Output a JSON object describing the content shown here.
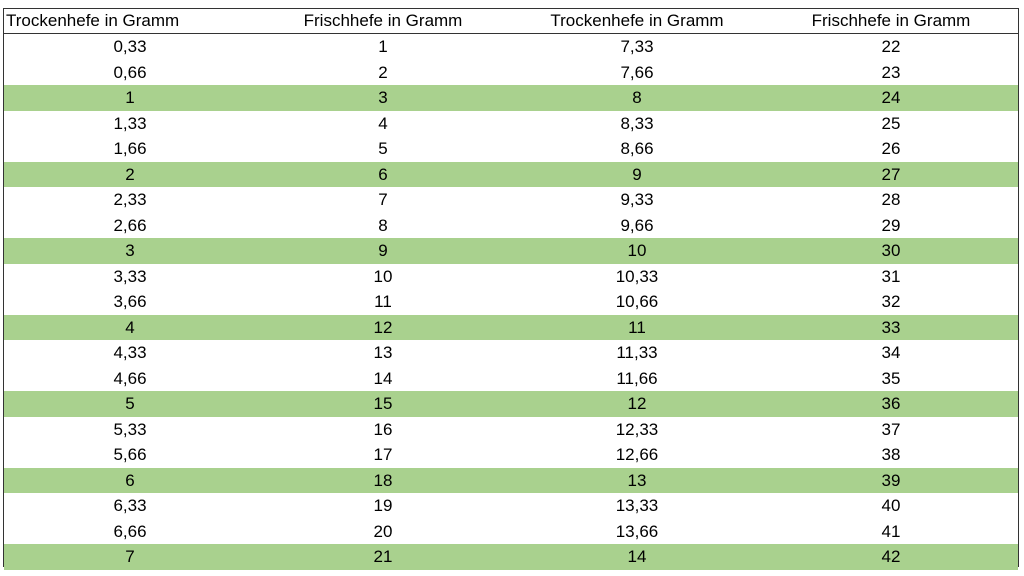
{
  "table": {
    "headers": [
      "Trockenhefe in Gramm",
      "Frischhefe in Gramm",
      "Trockenhefe in Gramm",
      "Frischhefe in Gramm"
    ],
    "highlight_color": "#a9d18e",
    "rows": [
      {
        "cells": [
          "0,33",
          "1",
          "7,33",
          "22"
        ],
        "highlight": false
      },
      {
        "cells": [
          "0,66",
          "2",
          "7,66",
          "23"
        ],
        "highlight": false
      },
      {
        "cells": [
          "1",
          "3",
          "8",
          "24"
        ],
        "highlight": true
      },
      {
        "cells": [
          "1,33",
          "4",
          "8,33",
          "25"
        ],
        "highlight": false
      },
      {
        "cells": [
          "1,66",
          "5",
          "8,66",
          "26"
        ],
        "highlight": false
      },
      {
        "cells": [
          "2",
          "6",
          "9",
          "27"
        ],
        "highlight": true
      },
      {
        "cells": [
          "2,33",
          "7",
          "9,33",
          "28"
        ],
        "highlight": false
      },
      {
        "cells": [
          "2,66",
          "8",
          "9,66",
          "29"
        ],
        "highlight": false
      },
      {
        "cells": [
          "3",
          "9",
          "10",
          "30"
        ],
        "highlight": true
      },
      {
        "cells": [
          "3,33",
          "10",
          "10,33",
          "31"
        ],
        "highlight": false
      },
      {
        "cells": [
          "3,66",
          "11",
          "10,66",
          "32"
        ],
        "highlight": false
      },
      {
        "cells": [
          "4",
          "12",
          "11",
          "33"
        ],
        "highlight": true
      },
      {
        "cells": [
          "4,33",
          "13",
          "11,33",
          "34"
        ],
        "highlight": false
      },
      {
        "cells": [
          "4,66",
          "14",
          "11,66",
          "35"
        ],
        "highlight": false
      },
      {
        "cells": [
          "5",
          "15",
          "12",
          "36"
        ],
        "highlight": true
      },
      {
        "cells": [
          "5,33",
          "16",
          "12,33",
          "37"
        ],
        "highlight": false
      },
      {
        "cells": [
          "5,66",
          "17",
          "12,66",
          "38"
        ],
        "highlight": false
      },
      {
        "cells": [
          "6",
          "18",
          "13",
          "39"
        ],
        "highlight": true
      },
      {
        "cells": [
          "6,33",
          "19",
          "13,33",
          "40"
        ],
        "highlight": false
      },
      {
        "cells": [
          "6,66",
          "20",
          "13,66",
          "41"
        ],
        "highlight": false
      },
      {
        "cells": [
          "7",
          "21",
          "14",
          "42"
        ],
        "highlight": true
      }
    ]
  }
}
